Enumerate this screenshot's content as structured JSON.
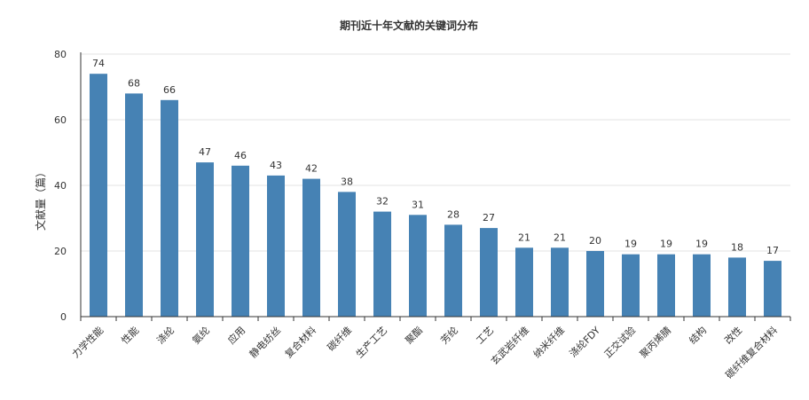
{
  "chart_data": {
    "type": "bar",
    "title": "期刊近十年文献的关键词分布",
    "xlabel": "",
    "ylabel": "文献量（篇）",
    "ylim": [
      0,
      80
    ],
    "yticks": [
      0,
      20,
      40,
      60,
      80
    ],
    "grid": true,
    "colors": {
      "bar": "#4682b4",
      "grid": "#e3e3e3",
      "axis": "#333333"
    },
    "categories": [
      "力学性能",
      "性能",
      "涤纶",
      "氨纶",
      "应用",
      "静电纺丝",
      "复合材料",
      "碳纤维",
      "生产工艺",
      "聚酯",
      "芳纶",
      "工艺",
      "玄武岩纤维",
      "纳米纤维",
      "涤纶FDY",
      "正交试验",
      "聚丙烯腈",
      "结构",
      "改性",
      "碳纤维复合材料"
    ],
    "values": [
      74,
      68,
      66,
      47,
      46,
      43,
      42,
      38,
      32,
      31,
      28,
      27,
      21,
      21,
      20,
      19,
      19,
      19,
      18,
      17
    ]
  }
}
